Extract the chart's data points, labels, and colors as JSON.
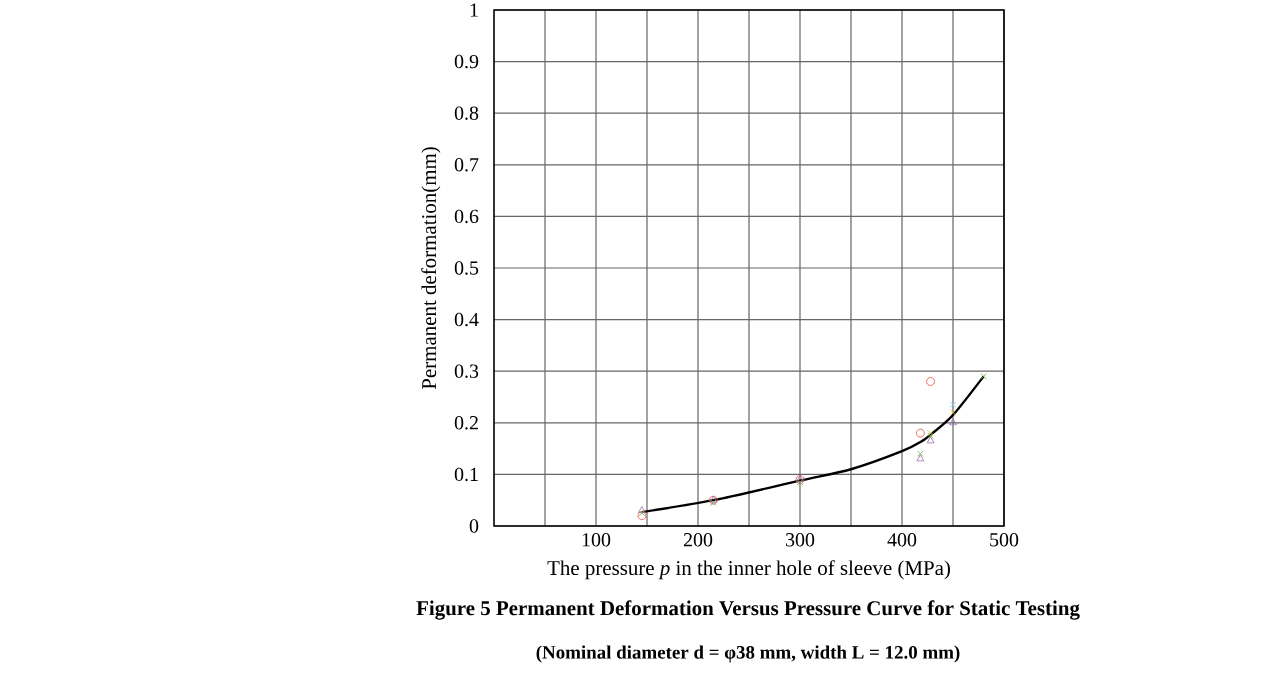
{
  "chart_data": {
    "type": "scatter",
    "title": "Figure 5  Permanent Deformation Versus Pressure Curve for Static Testing",
    "subtitle": "(Nominal diameter d = φ38 mm, width L = 12.0 mm)",
    "xlabel": "The pressure *p* in the inner hole of sleeve  (MPa)",
    "ylabel": "Permanent deformation(mm)",
    "xlim": [
      0,
      500
    ],
    "ylim": [
      0,
      1
    ],
    "xticks": [
      {
        "value": 50,
        "label": null
      },
      100,
      {
        "value": 150,
        "label": null
      },
      200,
      {
        "value": 250,
        "label": null
      },
      300,
      {
        "value": 350,
        "label": null
      },
      400,
      {
        "value": 450,
        "label": null
      },
      500
    ],
    "yticks": [
      0,
      0.1,
      0.2,
      0.3,
      0.4,
      0.5,
      0.6,
      0.7,
      0.8,
      0.9,
      1
    ],
    "grid": true,
    "series": [
      {
        "type": "line",
        "color": "#000000",
        "marker": "none",
        "line_style": "solid",
        "x": [
          145,
          215,
          300,
          350,
          400,
          420,
          430,
          450,
          480
        ],
        "values": [
          0.027,
          0.05,
          0.088,
          0.11,
          0.145,
          0.165,
          0.18,
          0.215,
          0.29
        ]
      },
      {
        "color": "#e8503c",
        "marker": "circle",
        "x": [
          145,
          215,
          300,
          418,
          428
        ],
        "values": [
          0.02,
          0.05,
          0.09,
          0.18,
          0.28
        ]
      },
      {
        "color": "#9a6fb0",
        "marker": "triangle",
        "x": [
          145,
          215,
          300,
          418,
          428,
          450
        ],
        "values": [
          0.03,
          0.05,
          0.09,
          0.13,
          0.165,
          0.2
        ]
      },
      {
        "color": "#6aa84f",
        "marker": "cross",
        "x": [
          145,
          215,
          300,
          418,
          428,
          450,
          480
        ],
        "values": [
          0.025,
          0.045,
          0.085,
          0.14,
          0.175,
          null,
          0.29
        ]
      },
      {
        "color": "#d4c43a",
        "marker": "cross",
        "x": [
          428,
          450
        ],
        "values": [
          0.18,
          0.22
        ]
      },
      {
        "color": "#7ec8e8",
        "marker": "cross",
        "x": [
          450
        ],
        "values": [
          0.235
        ]
      }
    ]
  }
}
